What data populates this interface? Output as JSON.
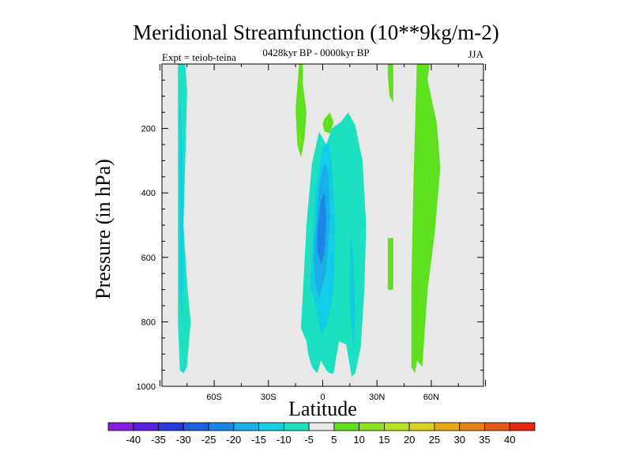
{
  "chart_data": {
    "type": "heatmap",
    "title": "Meridional Streamfunction (10**9kg/m-2)",
    "subtitle": "0428kyr BP - 0000kyr BP",
    "experiment_label": "Expt = teiob-teina",
    "season": "JJA",
    "xlabel": "Latitude",
    "ylabel": "Pressure (in hPa)",
    "xlim": [
      -90,
      90
    ],
    "ylim": [
      1000,
      0
    ],
    "x_ticks": [
      {
        "value": -60,
        "label": "60S"
      },
      {
        "value": -30,
        "label": "30S"
      },
      {
        "value": 0,
        "label": "0"
      },
      {
        "value": 30,
        "label": "30N"
      },
      {
        "value": 60,
        "label": "60N"
      }
    ],
    "y_ticks": [
      {
        "value": 200,
        "label": "200"
      },
      {
        "value": 400,
        "label": "400"
      },
      {
        "value": 600,
        "label": "600"
      },
      {
        "value": 800,
        "label": "800"
      },
      {
        "value": 1000,
        "label": "1000"
      }
    ],
    "colorbar": {
      "labels": [
        "-40",
        "-35",
        "-30",
        "-25",
        "-20",
        "-15",
        "-10",
        "-5",
        "5",
        "10",
        "15",
        "20",
        "25",
        "30",
        "35",
        "40"
      ],
      "colors": [
        "#8a1ee0",
        "#5a1ee6",
        "#2838dc",
        "#1f5fe0",
        "#1c86e6",
        "#19aee6",
        "#14cce6",
        "#1de0c0",
        "#e8e8e8",
        "#5ee01e",
        "#8ce01e",
        "#b9e01e",
        "#dcd21e",
        "#e6aa14",
        "#e68214",
        "#e65a14",
        "#e6280f"
      ]
    },
    "contours": [
      {
        "name": "sh-high-lat-cell",
        "level": "-5 to -10",
        "color": "#1de0c0",
        "lat": [
          -80,
          -76,
          -75,
          -76,
          -77,
          -75,
          -73,
          -74,
          -75,
          -75,
          -77,
          -79,
          -80
        ],
        "p": [
          0,
          0,
          80,
          300,
          500,
          680,
          800,
          870,
          930,
          940,
          960,
          950,
          800
        ]
      },
      {
        "name": "sh-high-lat-core",
        "level": "-10 to -15",
        "color": "#14cce6",
        "lat": [
          -79,
          -78,
          -77,
          -77,
          -78,
          -79
        ],
        "p": [
          60,
          200,
          400,
          650,
          820,
          650
        ]
      },
      {
        "name": "equatorial-cell",
        "level": "-5 to -10",
        "color": "#1de0c0",
        "lat": [
          -12,
          -9,
          -6,
          -2,
          2,
          5,
          10,
          14,
          18,
          22,
          24,
          23,
          21,
          18,
          16,
          13,
          9,
          6,
          4,
          2,
          -1,
          -3,
          -6,
          -8,
          -9
        ],
        "p": [
          820,
          500,
          310,
          210,
          250,
          200,
          180,
          150,
          190,
          300,
          500,
          700,
          880,
          960,
          970,
          870,
          860,
          960,
          960,
          950,
          920,
          960,
          940,
          900,
          860
        ]
      },
      {
        "name": "equatorial-core",
        "level": "-10 to -15",
        "color": "#14cce6",
        "lat": [
          -7,
          -4,
          0,
          3,
          5,
          7,
          6,
          3,
          -1,
          -3,
          -5
        ],
        "p": [
          700,
          400,
          260,
          240,
          300,
          500,
          700,
          800,
          840,
          780,
          720
        ]
      },
      {
        "name": "equatorial-inner",
        "level": "-15 to -20",
        "color": "#19aee6",
        "lat": [
          -5,
          -2,
          1,
          3,
          4,
          2,
          -2,
          -4
        ],
        "p": [
          600,
          380,
          310,
          330,
          480,
          640,
          730,
          680
        ]
      },
      {
        "name": "equatorial-center",
        "level": "-20 to -25",
        "color": "#1c86e6",
        "lat": [
          -3,
          -1,
          1,
          2,
          1,
          -1,
          -3
        ],
        "p": [
          520,
          420,
          400,
          480,
          590,
          620,
          580
        ]
      },
      {
        "name": "nh-subtropical-core",
        "level": "-10 to -15",
        "color": "#14cce6",
        "lat": [
          15,
          17,
          18,
          17,
          15
        ],
        "p": [
          520,
          600,
          780,
          880,
          760
        ]
      },
      {
        "name": "sh-subtropical-positive",
        "level": "5 to 10",
        "color": "#5ee01e",
        "lat": [
          -13,
          -11,
          -11,
          -9,
          -10,
          -12,
          -14,
          -15
        ],
        "p": [
          0,
          0,
          60,
          150,
          230,
          290,
          250,
          140
        ]
      },
      {
        "name": "equatorial-positive-cap",
        "level": "5 to 10",
        "color": "#5ee01e",
        "lat": [
          1,
          4,
          6,
          4,
          1,
          0
        ],
        "p": [
          170,
          150,
          180,
          215,
          210,
          185
        ]
      },
      {
        "name": "nh-positive-strip",
        "level": "5 to 10",
        "color": "#5ee01e",
        "lat": [
          36,
          39,
          39,
          37,
          36
        ],
        "p": [
          0,
          0,
          120,
          100,
          40
        ]
      },
      {
        "name": "nh-positive-stub",
        "level": "5 to 10",
        "color": "#5ee01e",
        "lat": [
          36,
          39,
          39,
          36
        ],
        "p": [
          540,
          540,
          700,
          700
        ]
      },
      {
        "name": "nh-midlat-positive",
        "level": "5 to 10",
        "color": "#5ee01e",
        "lat": [
          52,
          59,
          58,
          61,
          63,
          65,
          62,
          58,
          55,
          52,
          51,
          49,
          49,
          50
        ],
        "p": [
          0,
          0,
          50,
          130,
          180,
          320,
          520,
          700,
          940,
          920,
          960,
          940,
          700,
          400
        ]
      },
      {
        "name": "nh-midlat-positive-core",
        "level": "10 to 15",
        "color": "#8ce01e",
        "lat": [
          57,
          58,
          57
        ],
        "p": [
          320,
          420,
          340
        ]
      },
      {
        "name": "sh-positive-blob",
        "level": "10 to 15",
        "color": "#8ce01e",
        "lat": [
          -13,
          -12,
          -13
        ],
        "p": [
          200,
          240,
          260
        ]
      },
      {
        "name": "equator-positive-blob",
        "level": "10 to 15",
        "color": "#8ce01e",
        "lat": [
          2,
          3,
          2
        ],
        "p": [
          175,
          180,
          185
        ]
      }
    ]
  }
}
